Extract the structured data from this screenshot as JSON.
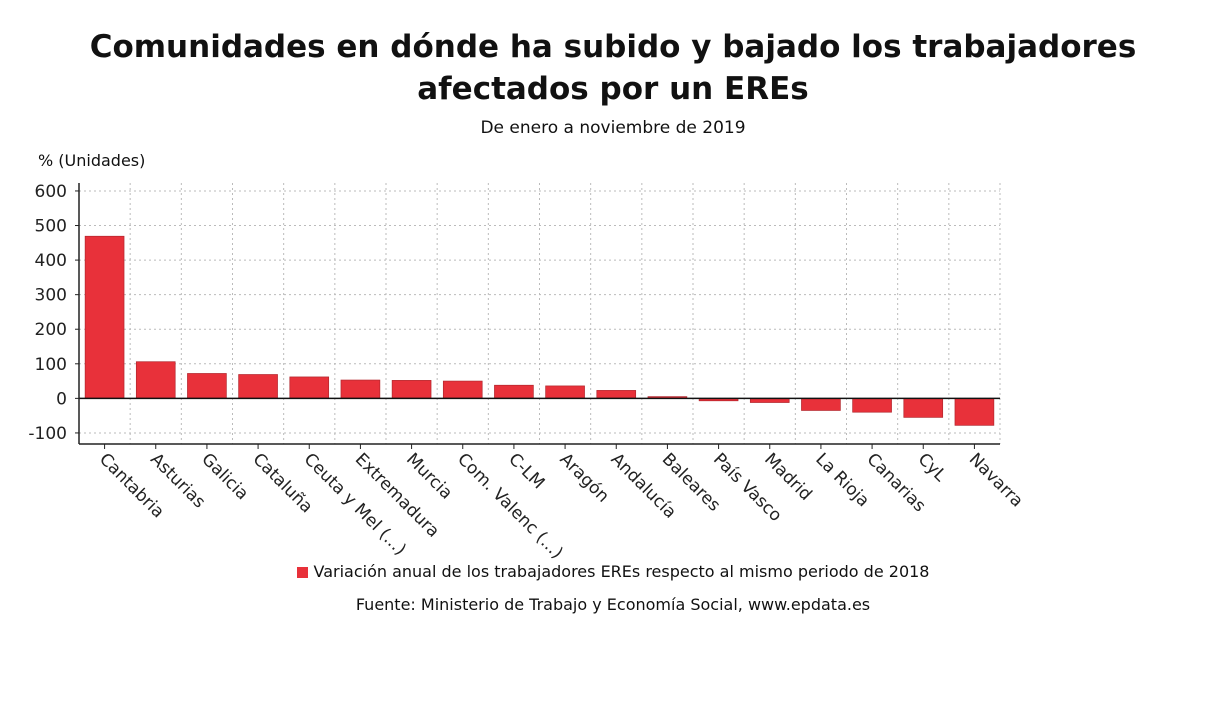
{
  "chart_data": {
    "type": "bar",
    "title": "Comunidades en dónde ha subido y bajado los trabajadores afectados por un EREs",
    "subtitle": "De enero a noviembre de 2019",
    "ylabel": "% (Unidades)",
    "xlabel": "",
    "ylim": [
      -132,
      623
    ],
    "yticks": [
      -100,
      0,
      100,
      200,
      300,
      400,
      500,
      600
    ],
    "grid": true,
    "legend_position": "bottom",
    "bar_color": "#e8313a",
    "categories": [
      "Cantabria",
      "Asturias",
      "Galicia",
      "Cataluña",
      "Ceuta y Mel (...)",
      "Extremadura",
      "Murcia",
      "Com. Valenc (...)",
      "C-LM",
      "Aragón",
      "Andalucía",
      "Baleares",
      "País Vasco",
      "Madrid",
      "La Rioja",
      "Canarias",
      "CyL",
      "Navarra"
    ],
    "series": [
      {
        "name": "Variación anual de los trabajadores EREs respecto al mismo periodo de 2018",
        "values": [
          469,
          106,
          72,
          69,
          62,
          53,
          52,
          50,
          38,
          36,
          23,
          5,
          -7,
          -12,
          -35,
          -40,
          -55,
          -78
        ]
      }
    ],
    "source": "Fuente: Ministerio de Trabajo y Economía Social, www.epdata.es"
  }
}
